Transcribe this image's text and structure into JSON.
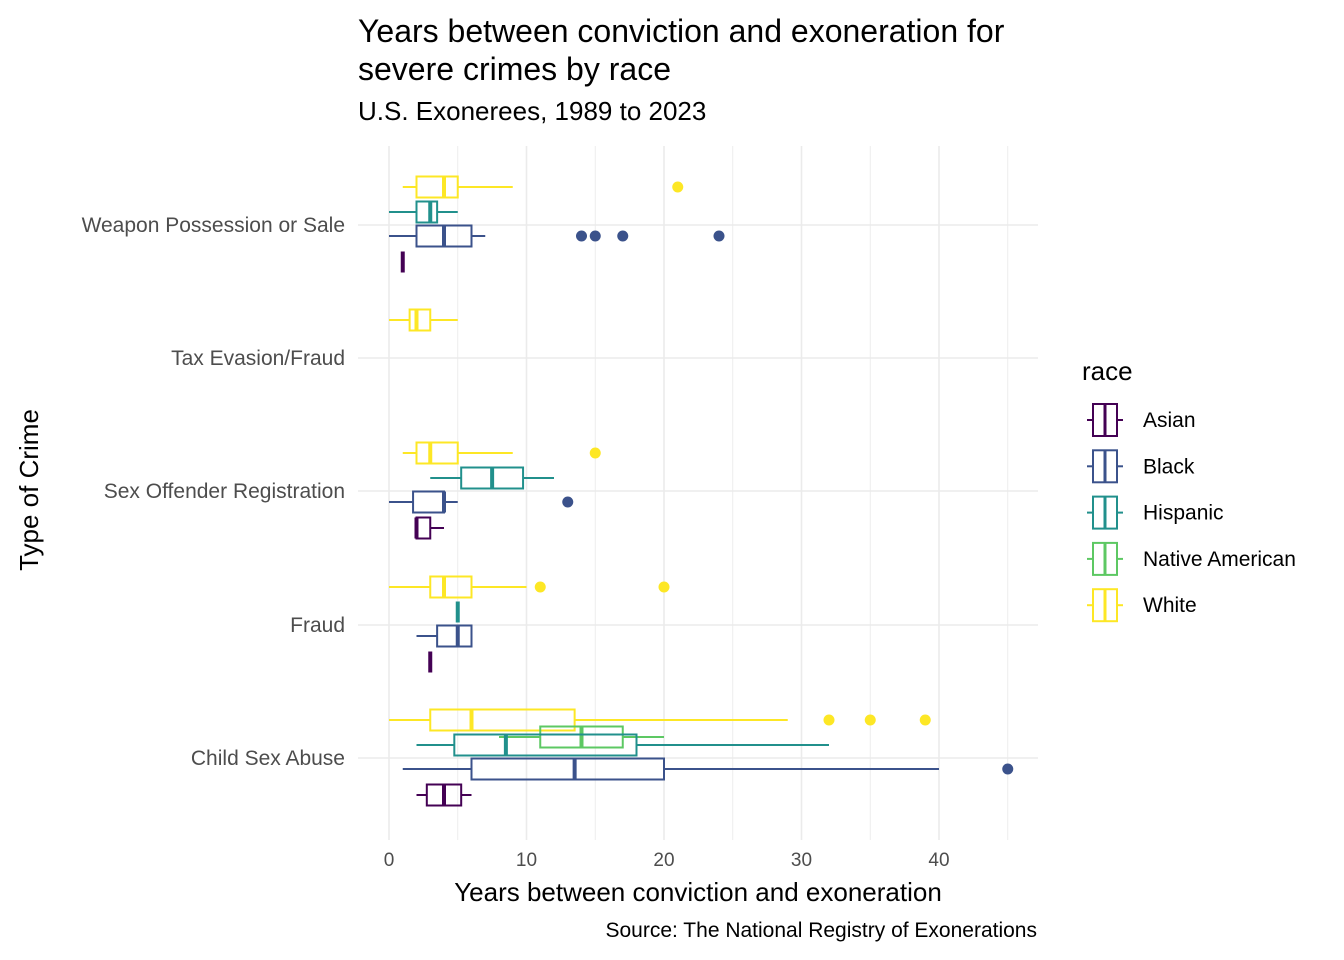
{
  "chart_data": {
    "type": "boxplot",
    "title": "Years between conviction and exoneration for severe crimes by race",
    "title_lines": [
      "Years between conviction and exoneration for",
      "severe crimes by race"
    ],
    "subtitle": "U.S. Exonerees, 1989 to 2023",
    "caption": "Source: The National Registry of Exonerations",
    "xlabel": "Years between conviction and exoneration",
    "ylabel": "Type of Crime",
    "xlim": [
      -2,
      47.5
    ],
    "x_ticks": [
      0,
      10,
      20,
      30,
      40
    ],
    "categories": [
      "Weapon Possession or Sale",
      "Tax Evasion/Fraud",
      "Sex Offender Registration",
      "Fraud",
      "Child Sex Abuse"
    ],
    "legend_title": "race",
    "legend": [
      {
        "name": "Asian",
        "color": "#440154"
      },
      {
        "name": "Black",
        "color": "#3b528b"
      },
      {
        "name": "Hispanic",
        "color": "#21908c"
      },
      {
        "name": "Native American",
        "color": "#5dc863"
      },
      {
        "name": "White",
        "color": "#fde725"
      }
    ],
    "boxes": [
      {
        "category": "Weapon Possession or Sale",
        "race": "White",
        "min": 1,
        "q1": 2,
        "median": 4,
        "q3": 5,
        "max": 9,
        "outliers": [
          21
        ]
      },
      {
        "category": "Weapon Possession or Sale",
        "race": "Hispanic",
        "min": 0,
        "q1": 2,
        "median": 3,
        "q3": 3.5,
        "max": 5,
        "outliers": []
      },
      {
        "category": "Weapon Possession or Sale",
        "race": "Black",
        "min": 0,
        "q1": 2,
        "median": 4,
        "q3": 6,
        "max": 7,
        "outliers": [
          14,
          15,
          17,
          24
        ]
      },
      {
        "category": "Weapon Possession or Sale",
        "race": "Asian",
        "min": 1,
        "q1": 1,
        "median": 1,
        "q3": 1,
        "max": 1,
        "outliers": []
      },
      {
        "category": "Tax Evasion/Fraud",
        "race": "White",
        "min": 0,
        "q1": 1.5,
        "median": 2,
        "q3": 3,
        "max": 5,
        "outliers": []
      },
      {
        "category": "Sex Offender Registration",
        "race": "White",
        "min": 1,
        "q1": 2,
        "median": 3,
        "q3": 5,
        "max": 9,
        "outliers": [
          15
        ]
      },
      {
        "category": "Sex Offender Registration",
        "race": "Hispanic",
        "min": 3,
        "q1": 5.25,
        "median": 7.5,
        "q3": 9.75,
        "max": 12,
        "outliers": []
      },
      {
        "category": "Sex Offender Registration",
        "race": "Black",
        "min": 0,
        "q1": 1.75,
        "median": 4,
        "q3": 4,
        "max": 5,
        "outliers": [
          13
        ]
      },
      {
        "category": "Sex Offender Registration",
        "race": "Asian",
        "min": 2,
        "q1": 2,
        "median": 2,
        "q3": 3,
        "max": 4,
        "outliers": []
      },
      {
        "category": "Fraud",
        "race": "White",
        "min": 0,
        "q1": 3,
        "median": 4,
        "q3": 6,
        "max": 10,
        "outliers": [
          11,
          20
        ]
      },
      {
        "category": "Fraud",
        "race": "Hispanic",
        "min": 5,
        "q1": 5,
        "median": 5,
        "q3": 5,
        "max": 5,
        "outliers": []
      },
      {
        "category": "Fraud",
        "race": "Black",
        "min": 2,
        "q1": 3.5,
        "median": 5,
        "q3": 6,
        "max": 6,
        "outliers": []
      },
      {
        "category": "Fraud",
        "race": "Asian",
        "min": 3,
        "q1": 3,
        "median": 3,
        "q3": 3,
        "max": 3,
        "outliers": []
      },
      {
        "category": "Child Sex Abuse",
        "race": "White",
        "min": 0,
        "q1": 3,
        "median": 6,
        "q3": 13.5,
        "max": 29,
        "outliers": [
          32,
          35,
          39
        ]
      },
      {
        "category": "Child Sex Abuse",
        "race": "Native American",
        "min": 8,
        "q1": 11,
        "median": 14,
        "q3": 17,
        "max": 20,
        "outliers": []
      },
      {
        "category": "Child Sex Abuse",
        "race": "Hispanic",
        "min": 2,
        "q1": 4.75,
        "median": 8.5,
        "q3": 18,
        "max": 32,
        "outliers": []
      },
      {
        "category": "Child Sex Abuse",
        "race": "Black",
        "min": 1,
        "q1": 6,
        "median": 13.5,
        "q3": 20,
        "max": 40,
        "outliers": [
          45
        ]
      },
      {
        "category": "Child Sex Abuse",
        "race": "Asian",
        "min": 2,
        "q1": 2.75,
        "median": 4,
        "q3": 5.25,
        "max": 6,
        "outliers": []
      }
    ]
  }
}
